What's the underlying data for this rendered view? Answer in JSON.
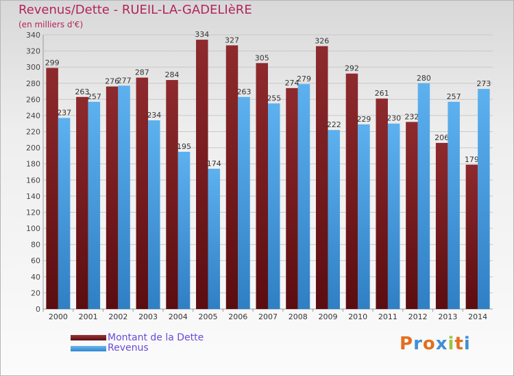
{
  "title": "Revenus/Dette - RUEIL-LA-GADELIèRE",
  "subtitle": "(en milliers d'€)",
  "legend": [
    {
      "label": "Montant de la Dette",
      "color": "#7a1f22"
    },
    {
      "label": "Revenus",
      "color": "#4aa3e6"
    }
  ],
  "logo": {
    "text": "Proxiti",
    "colors": [
      "#e36f1e",
      "#3f8fd8",
      "#e36f1e",
      "#3f8fd8",
      "#9ac43c",
      "#e36f1e",
      "#3f8fd8"
    ]
  },
  "chart_data": {
    "type": "bar",
    "title": "Revenus/Dette - RUEIL-LA-GADELIèRE",
    "subtitle": "(en milliers d'€)",
    "categories": [
      "2000",
      "2001",
      "2002",
      "2003",
      "2004",
      "2005",
      "2006",
      "2007",
      "2008",
      "2009",
      "2010",
      "2011",
      "2012",
      "2013",
      "2014"
    ],
    "series": [
      {
        "name": "Montant de la Dette",
        "color": "#7a1f22",
        "values": [
          299,
          263,
          276,
          287,
          284,
          334,
          327,
          305,
          274,
          326,
          292,
          261,
          232,
          206,
          179
        ]
      },
      {
        "name": "Revenus",
        "color": "#4aa3e6",
        "values": [
          237,
          257,
          277,
          234,
          195,
          174,
          263,
          255,
          279,
          222,
          229,
          230,
          280,
          257,
          273
        ]
      }
    ],
    "ylim": [
      0,
      340
    ],
    "yticks": [
      0,
      20,
      40,
      60,
      80,
      100,
      120,
      140,
      160,
      180,
      200,
      220,
      240,
      260,
      280,
      300,
      320,
      340
    ],
    "grid": true,
    "legend_position": "bottom-left"
  }
}
